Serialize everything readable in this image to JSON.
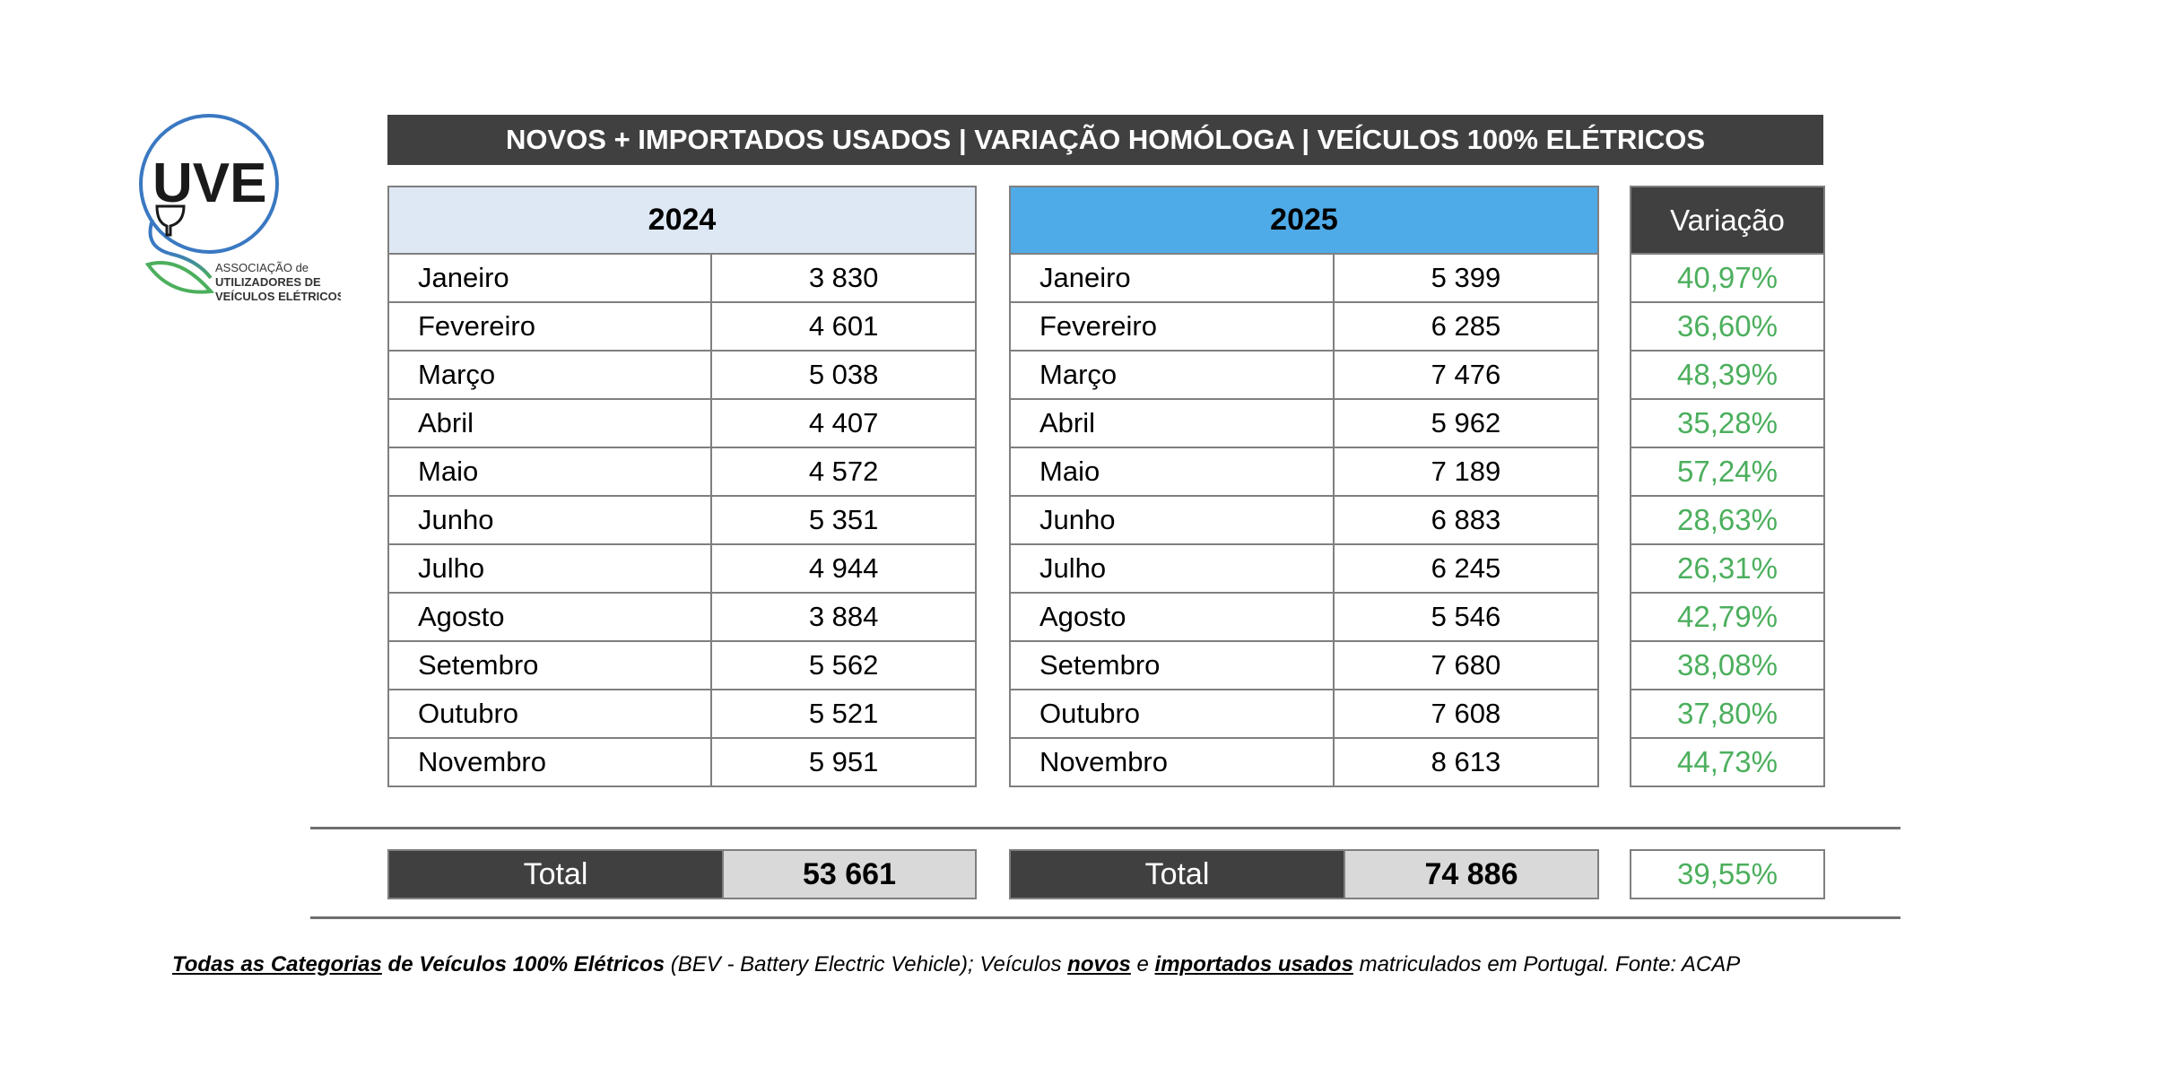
{
  "logo": {
    "name": "UVE",
    "text_lines": [
      "ASSOCIAÇÃO de",
      "UTILIZADORES DE",
      "VEÍCULOS ELÉTRICOS"
    ]
  },
  "title": "NOVOS + IMPORTADOS USADOS | VARIAÇÃO HOMÓLOGA | VEÍCULOS 100% ELÉTRICOS",
  "year_2024": {
    "header": "2024",
    "rows": [
      {
        "month": "Janeiro",
        "value": "3 830"
      },
      {
        "month": "Fevereiro",
        "value": "4 601"
      },
      {
        "month": "Março",
        "value": "5 038"
      },
      {
        "month": "Abril",
        "value": "4 407"
      },
      {
        "month": "Maio",
        "value": "4 572"
      },
      {
        "month": "Junho",
        "value": "5 351"
      },
      {
        "month": "Julho",
        "value": "4 944"
      },
      {
        "month": "Agosto",
        "value": "3 884"
      },
      {
        "month": "Setembro",
        "value": "5 562"
      },
      {
        "month": "Outubro",
        "value": "5 521"
      },
      {
        "month": "Novembro",
        "value": "5 951"
      }
    ],
    "total_label": "Total",
    "total": "53 661"
  },
  "year_2025": {
    "header": "2025",
    "rows": [
      {
        "month": "Janeiro",
        "value": "5 399"
      },
      {
        "month": "Fevereiro",
        "value": "6 285"
      },
      {
        "month": "Março",
        "value": "7 476"
      },
      {
        "month": "Abril",
        "value": "5 962"
      },
      {
        "month": "Maio",
        "value": "7 189"
      },
      {
        "month": "Junho",
        "value": "6 883"
      },
      {
        "month": "Julho",
        "value": "6 245"
      },
      {
        "month": "Agosto",
        "value": "5 546"
      },
      {
        "month": "Setembro",
        "value": "7 680"
      },
      {
        "month": "Outubro",
        "value": "7 608"
      },
      {
        "month": "Novembro",
        "value": "8 613"
      }
    ],
    "total_label": "Total",
    "total": "74 886"
  },
  "variation": {
    "header": "Variação",
    "rows": [
      "40,97%",
      "36,60%",
      "48,39%",
      "35,28%",
      "57,24%",
      "28,63%",
      "26,31%",
      "42,79%",
      "38,08%",
      "37,80%",
      "44,73%"
    ],
    "total": "39,55%"
  },
  "footer": {
    "p1": "Todas as Categorias",
    "p2": " de Veículos 100% Elétricos ",
    "p3": " (BEV - Battery Electric Vehicle); Veículos ",
    "p4": "novos",
    "p5": " e ",
    "p6": "importados usados",
    "p7": " matriculados em Portugal. Fonte: ACAP"
  },
  "colors": {
    "dark": "#404040",
    "header_2024": "#dee8f5",
    "header_2025": "#4fabe8",
    "positive": "#4caf5d"
  }
}
